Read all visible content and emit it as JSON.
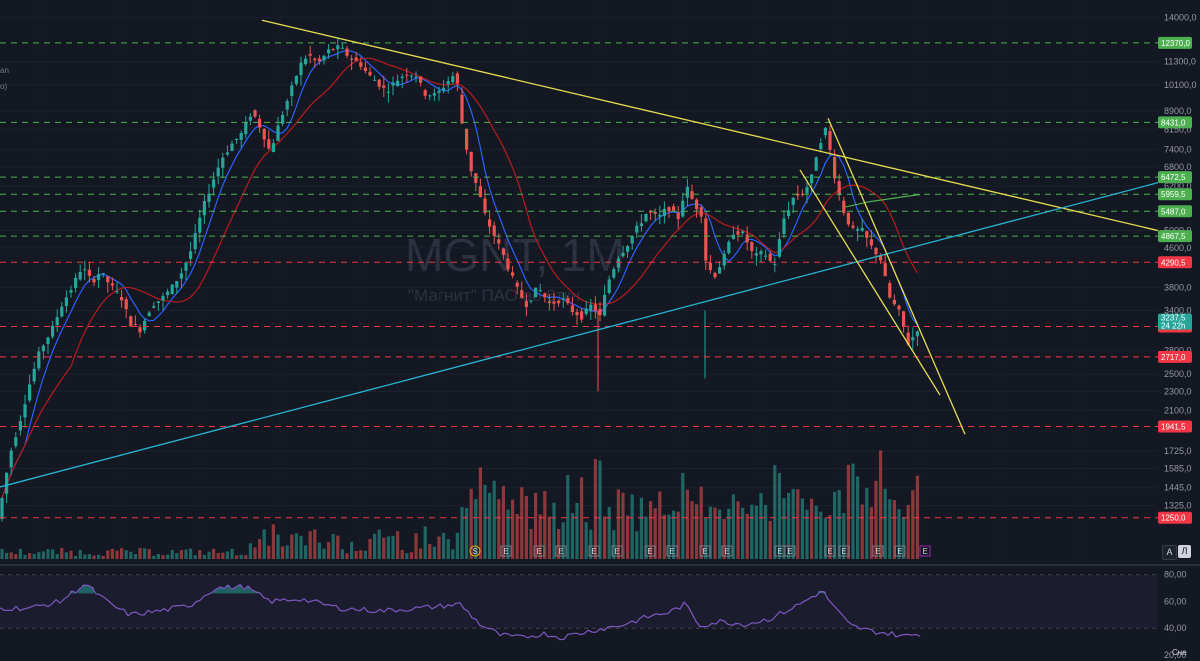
{
  "watermark": {
    "ticker": "MGNT, 1M",
    "description": "\"Магнит\" ПАО ао 6ткн."
  },
  "legend_fragments": [
    "an",
    "o)"
  ],
  "buttons": {
    "auto": "A",
    "log": "Л"
  },
  "corner_text": "Сне",
  "colors": {
    "background": "#141822",
    "up": "#26a69a",
    "down": "#ef5350",
    "trend_yellow": "#e6dc50",
    "trend_cyan": "#26b6d6",
    "ma_blue": "#2962ff",
    "ma_red": "#b71c1c",
    "rsi": "#7e57c2",
    "green_level": "#4caf50",
    "red_level": "#f23645"
  },
  "chart_data": {
    "type": "candlestick",
    "timeframe": "1M",
    "scale": "log",
    "y_axis_ticks": [
      "14000,0",
      "11300,0",
      "10100,0",
      "8900,0",
      "8150,0",
      "7400,0",
      "6800,0",
      "6200,0",
      "5000,0",
      "4600,0",
      "3800,0",
      "3400,0",
      "2800,0",
      "2500,0",
      "2300,0",
      "2100,0",
      "1725,0",
      "1585,0",
      "1445,0",
      "1325,0"
    ],
    "ylim": [
      1150,
      14500
    ],
    "levels": [
      {
        "value": 12370.0,
        "label": "12370,0",
        "style": "green"
      },
      {
        "value": 8431.0,
        "label": "8431,0",
        "style": "green"
      },
      {
        "value": 6472.5,
        "label": "6472,5",
        "style": "green"
      },
      {
        "value": 5959.5,
        "label": "5959,5",
        "style": "green"
      },
      {
        "value": 5487.0,
        "label": "5487,0",
        "style": "green"
      },
      {
        "value": 4867.5,
        "label": "4867,5",
        "style": "green"
      },
      {
        "value": 4290.5,
        "label": "4290,5",
        "style": "red"
      },
      {
        "value": 3147.0,
        "label": "3147,0",
        "style": "red"
      },
      {
        "value": 2717.0,
        "label": "2717,0",
        "style": "red"
      },
      {
        "value": 1941.5,
        "label": "1941,5",
        "style": "red"
      },
      {
        "value": 1250.0,
        "label": "1250,0",
        "style": "red"
      }
    ],
    "last_price": {
      "value": 3237.5,
      "label": "3237,5",
      "countdown": "24 22h"
    },
    "price_keypoints": [
      [
        0,
        1300
      ],
      [
        10,
        1700
      ],
      [
        20,
        2000
      ],
      [
        30,
        2400
      ],
      [
        40,
        2800
      ],
      [
        52,
        3100
      ],
      [
        62,
        3500
      ],
      [
        72,
        3800
      ],
      [
        82,
        4200
      ],
      [
        92,
        3900
      ],
      [
        100,
        4100
      ],
      [
        112,
        3800
      ],
      [
        122,
        3600
      ],
      [
        130,
        3200
      ],
      [
        140,
        3100
      ],
      [
        152,
        3500
      ],
      [
        162,
        3600
      ],
      [
        172,
        3800
      ],
      [
        182,
        4100
      ],
      [
        192,
        4600
      ],
      [
        202,
        5500
      ],
      [
        212,
        6300
      ],
      [
        222,
        7100
      ],
      [
        232,
        7600
      ],
      [
        242,
        8000
      ],
      [
        252,
        8900
      ],
      [
        262,
        8100
      ],
      [
        270,
        7300
      ],
      [
        280,
        8500
      ],
      [
        290,
        9700
      ],
      [
        300,
        11100
      ],
      [
        308,
        11700
      ],
      [
        318,
        11200
      ],
      [
        330,
        12000
      ],
      [
        340,
        12100
      ],
      [
        350,
        11500
      ],
      [
        360,
        11200
      ],
      [
        368,
        10600
      ],
      [
        376,
        10300
      ],
      [
        386,
        9800
      ],
      [
        396,
        10300
      ],
      [
        406,
        10700
      ],
      [
        416,
        10600
      ],
      [
        424,
        9700
      ],
      [
        436,
        9600
      ],
      [
        448,
        10300
      ],
      [
        456,
        10700
      ],
      [
        462,
        8400
      ],
      [
        470,
        6800
      ],
      [
        478,
        6100
      ],
      [
        486,
        5300
      ],
      [
        496,
        4800
      ],
      [
        506,
        4300
      ],
      [
        516,
        3800
      ],
      [
        526,
        3500
      ],
      [
        538,
        3800
      ],
      [
        550,
        3500
      ],
      [
        562,
        3600
      ],
      [
        572,
        3400
      ],
      [
        582,
        3300
      ],
      [
        592,
        3500
      ],
      [
        600,
        3300
      ],
      [
        608,
        3900
      ],
      [
        618,
        4400
      ],
      [
        628,
        4700
      ],
      [
        638,
        5100
      ],
      [
        648,
        5500
      ],
      [
        658,
        5300
      ],
      [
        668,
        5600
      ],
      [
        678,
        5300
      ],
      [
        686,
        6200
      ],
      [
        694,
        5700
      ],
      [
        702,
        5400
      ],
      [
        706,
        4300
      ],
      [
        714,
        4000
      ],
      [
        724,
        4400
      ],
      [
        734,
        5000
      ],
      [
        744,
        4900
      ],
      [
        754,
        4400
      ],
      [
        764,
        4500
      ],
      [
        774,
        4200
      ],
      [
        784,
        5300
      ],
      [
        794,
        5900
      ],
      [
        804,
        6000
      ],
      [
        812,
        6500
      ],
      [
        818,
        7500
      ],
      [
        826,
        8200
      ],
      [
        834,
        6600
      ],
      [
        842,
        5600
      ],
      [
        852,
        5000
      ],
      [
        862,
        5000
      ],
      [
        872,
        4600
      ],
      [
        880,
        4400
      ],
      [
        890,
        3600
      ],
      [
        900,
        3350
      ],
      [
        908,
        2900
      ],
      [
        916,
        3050
      ],
      [
        920,
        3237
      ]
    ],
    "volume_bar_peaks_x": [
      482,
      598,
      778,
      880
    ],
    "event_markers": [
      {
        "x": 475,
        "label": "S"
      },
      {
        "x": 506,
        "label": "E"
      },
      {
        "x": 539,
        "label": "E"
      },
      {
        "x": 561,
        "label": "E"
      },
      {
        "x": 594,
        "label": "E"
      },
      {
        "x": 617,
        "label": "E"
      },
      {
        "x": 650,
        "label": "E"
      },
      {
        "x": 672,
        "label": "E"
      },
      {
        "x": 705,
        "label": "E"
      },
      {
        "x": 727,
        "label": "E"
      },
      {
        "x": 780,
        "label": "E"
      },
      {
        "x": 790,
        "label": "E"
      },
      {
        "x": 830,
        "label": "E"
      },
      {
        "x": 844,
        "label": "E"
      },
      {
        "x": 878,
        "label": "E"
      },
      {
        "x": 900,
        "label": "E"
      },
      {
        "x": 925,
        "label": "E"
      }
    ],
    "rsi": {
      "ticks": [
        "80,00",
        "60,00",
        "40,00",
        "20,00"
      ],
      "bands": [
        80,
        40
      ],
      "ylim": [
        20,
        85
      ],
      "keypoints": [
        [
          0,
          55
        ],
        [
          30,
          55
        ],
        [
          60,
          60
        ],
        [
          85,
          73
        ],
        [
          110,
          58
        ],
        [
          130,
          50
        ],
        [
          160,
          53
        ],
        [
          190,
          57
        ],
        [
          215,
          70
        ],
        [
          245,
          71
        ],
        [
          270,
          60
        ],
        [
          300,
          62
        ],
        [
          340,
          55
        ],
        [
          380,
          53
        ],
        [
          420,
          55
        ],
        [
          460,
          58
        ],
        [
          480,
          43
        ],
        [
          500,
          35
        ],
        [
          520,
          33
        ],
        [
          545,
          36
        ],
        [
          560,
          33
        ],
        [
          590,
          38
        ],
        [
          620,
          42
        ],
        [
          650,
          49
        ],
        [
          670,
          52
        ],
        [
          685,
          58
        ],
        [
          700,
          42
        ],
        [
          720,
          45
        ],
        [
          745,
          43
        ],
        [
          770,
          47
        ],
        [
          800,
          58
        ],
        [
          822,
          68
        ],
        [
          835,
          55
        ],
        [
          850,
          42
        ],
        [
          870,
          38
        ],
        [
          890,
          36
        ],
        [
          905,
          34
        ],
        [
          920,
          36
        ]
      ]
    }
  }
}
